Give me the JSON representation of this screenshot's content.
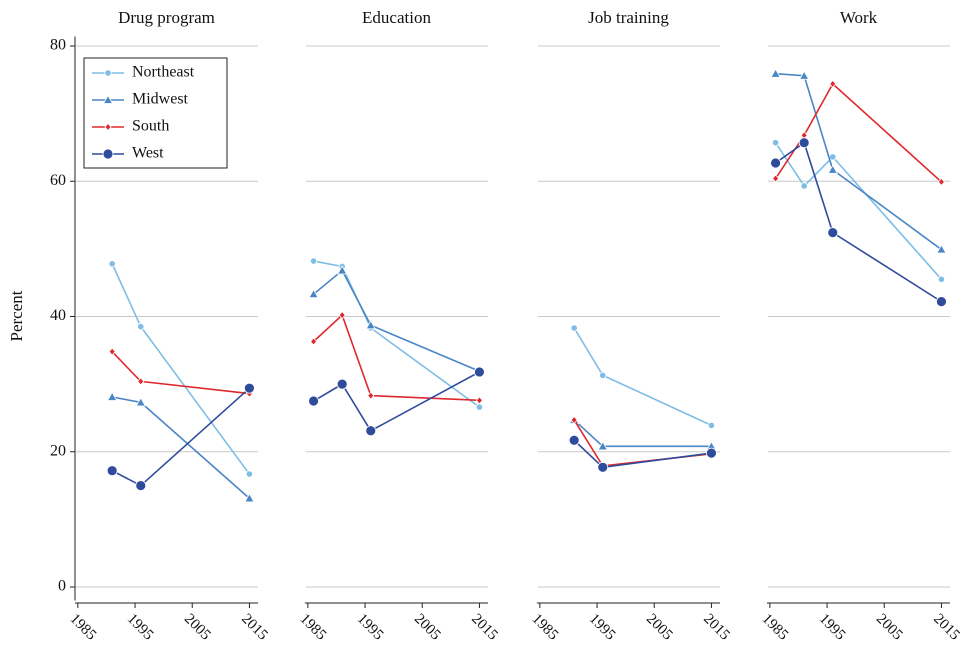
{
  "chart_data": [
    {
      "type": "line",
      "title": "Drug program",
      "ylabel": "Percent",
      "legend": "upper left",
      "x": [
        1986,
        1991,
        1996,
        2015
      ],
      "xlim": [
        1984.5,
        2016.5
      ],
      "xticks": [
        1985,
        1995,
        2005,
        2015
      ],
      "ylim": [
        -2,
        82
      ],
      "yticks": [
        0,
        20,
        40,
        60,
        80
      ],
      "grid": true,
      "series": [
        {
          "name": "Northeast",
          "color": "#7fbde6",
          "marker": "circle-small",
          "values": [
            null,
            47.8,
            38.5,
            16.7
          ]
        },
        {
          "name": "Midwest",
          "color": "#4a86c6",
          "marker": "triangle",
          "values": [
            null,
            28.1,
            27.3,
            13.1
          ]
        },
        {
          "name": "South",
          "color": "#e0282c",
          "marker": "diamond",
          "values": [
            null,
            34.8,
            30.4,
            28.6
          ]
        },
        {
          "name": "West",
          "color": "#2f4b9c",
          "marker": "circle",
          "values": [
            null,
            17.2,
            15.0,
            29.4
          ]
        }
      ]
    },
    {
      "type": "line",
      "title": "Education",
      "x": [
        1986,
        1991,
        1996,
        2015
      ],
      "xlim": [
        1984.5,
        2016.5
      ],
      "xticks": [
        1985,
        1995,
        2005,
        2015
      ],
      "ylim": [
        -2,
        82
      ],
      "yticks": [
        0,
        20,
        40,
        60,
        80
      ],
      "grid": true,
      "series": [
        {
          "name": "Northeast",
          "color": "#7fbde6",
          "marker": "circle-small",
          "values": [
            48.2,
            47.4,
            38.3,
            26.6
          ]
        },
        {
          "name": "Midwest",
          "color": "#4a86c6",
          "marker": "triangle",
          "values": [
            43.3,
            46.8,
            38.7,
            31.9
          ]
        },
        {
          "name": "South",
          "color": "#e0282c",
          "marker": "diamond",
          "values": [
            36.3,
            40.2,
            28.3,
            27.6
          ]
        },
        {
          "name": "West",
          "color": "#2f4b9c",
          "marker": "circle",
          "values": [
            27.5,
            30.0,
            23.1,
            31.8
          ]
        }
      ]
    },
    {
      "type": "line",
      "title": "Job training",
      "x": [
        1986,
        1991,
        1996,
        2015
      ],
      "xlim": [
        1984.5,
        2016.5
      ],
      "xticks": [
        1985,
        1995,
        2005,
        2015
      ],
      "ylim": [
        -2,
        82
      ],
      "yticks": [
        0,
        20,
        40,
        60,
        80
      ],
      "grid": true,
      "series": [
        {
          "name": "Northeast",
          "color": "#7fbde6",
          "marker": "circle-small",
          "values": [
            null,
            38.3,
            31.3,
            23.9
          ]
        },
        {
          "name": "Midwest",
          "color": "#4a86c6",
          "marker": "triangle",
          "values": [
            null,
            24.7,
            20.8,
            20.8
          ]
        },
        {
          "name": "South",
          "color": "#e0282c",
          "marker": "diamond",
          "values": [
            null,
            24.7,
            17.9,
            19.7
          ]
        },
        {
          "name": "West",
          "color": "#2f4b9c",
          "marker": "circle",
          "values": [
            null,
            21.7,
            17.7,
            19.8
          ]
        }
      ]
    },
    {
      "type": "line",
      "title": "Work",
      "x": [
        1986,
        1991,
        1996,
        2015
      ],
      "xlim": [
        1984.5,
        2016.5
      ],
      "xticks": [
        1985,
        1995,
        2005,
        2015
      ],
      "ylim": [
        -2,
        82
      ],
      "yticks": [
        0,
        20,
        40,
        60,
        80
      ],
      "grid": true,
      "series": [
        {
          "name": "Northeast",
          "color": "#7fbde6",
          "marker": "circle-small",
          "values": [
            65.7,
            59.3,
            63.6,
            45.5
          ]
        },
        {
          "name": "Midwest",
          "color": "#4a86c6",
          "marker": "triangle",
          "values": [
            75.9,
            75.6,
            61.7,
            49.9
          ]
        },
        {
          "name": "South",
          "color": "#e0282c",
          "marker": "diamond",
          "values": [
            60.4,
            66.8,
            74.4,
            59.9
          ]
        },
        {
          "name": "West",
          "color": "#2f4b9c",
          "marker": "circle",
          "values": [
            62.7,
            65.7,
            52.4,
            42.2
          ]
        }
      ]
    }
  ]
}
